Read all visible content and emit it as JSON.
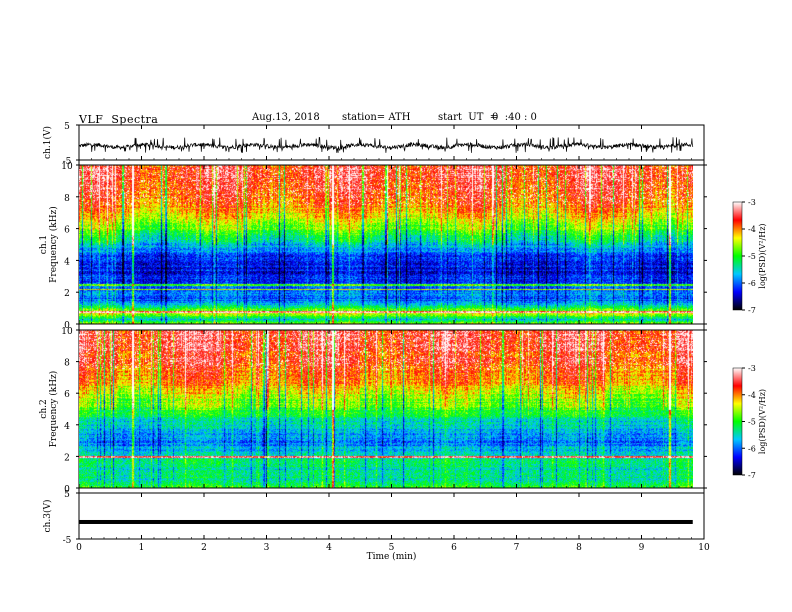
{
  "header": {
    "title": "VLF  Spectra",
    "date": "Aug.13, 2018",
    "station": "station= ATH",
    "start_ut_label": "start  UT  =",
    "start_ut_value": "0  :40 : 0"
  },
  "chart_data": [
    {
      "id": "ch1-waveform",
      "type": "line",
      "ylabel": "ch.1(V)",
      "ylim": [
        -5,
        5
      ],
      "yticks": [
        "5",
        "-5"
      ],
      "xlim": [
        0,
        10
      ],
      "x_extent": [
        0,
        9.82
      ],
      "baseline_v": -1.0,
      "noise_envelope_v": [
        -3,
        1.5
      ],
      "color": "#000000"
    },
    {
      "id": "ch1-spectrogram",
      "type": "heatmap",
      "ylabel_line1": "ch.1",
      "ylabel_line2": "Frequency  (kHz)",
      "ylim": [
        0,
        10
      ],
      "yticks": [
        "0",
        "2",
        "4",
        "6",
        "8",
        "10"
      ],
      "xlim": [
        0,
        10
      ],
      "x_extent": [
        0,
        9.82
      ],
      "colorbar": {
        "label": "log(PSD)(V²/Hz)",
        "range": [
          -7,
          -3
        ],
        "ticks": [
          "-3",
          "-4",
          "-5",
          "-6",
          "-7"
        ],
        "colors": [
          "#000000",
          "#0000ff",
          "#00c8ff",
          "#00ff00",
          "#ffff00",
          "#ff0000",
          "#ffffff"
        ]
      },
      "profile_khz_log_psd": [
        [
          0,
          -4.5
        ],
        [
          0.3,
          -5.5
        ],
        [
          0.7,
          -4.3
        ],
        [
          1.5,
          -6.0
        ],
        [
          2.0,
          -5.8
        ],
        [
          3.0,
          -6.3
        ],
        [
          4.0,
          -6.3
        ],
        [
          5.0,
          -5.6
        ],
        [
          6.0,
          -4.8
        ],
        [
          7.0,
          -4.2
        ],
        [
          8.0,
          -3.8
        ],
        [
          9.0,
          -3.6
        ],
        [
          10.0,
          -3.6
        ]
      ],
      "tonal_lines_khz": [
        0.8,
        2.2,
        2.5
      ],
      "bright_sferics_min": [
        0.85,
        4.05,
        9.45
      ]
    },
    {
      "id": "ch2-spectrogram",
      "type": "heatmap",
      "ylabel_line1": "ch.2",
      "ylabel_line2": "Frequency  (kHz)",
      "ylim": [
        0,
        10
      ],
      "yticks": [
        "0",
        "2",
        "4",
        "6",
        "8",
        "10"
      ],
      "xlim": [
        0,
        10
      ],
      "x_extent": [
        0,
        9.82
      ],
      "colorbar": {
        "label": "log(PSD)(V²/Hz)",
        "range": [
          -7,
          -3
        ],
        "ticks": [
          "-3",
          "-4",
          "-5",
          "-6",
          "-7"
        ],
        "colors": [
          "#000000",
          "#0000ff",
          "#00c8ff",
          "#00ff00",
          "#ffff00",
          "#ff0000",
          "#ffffff"
        ]
      },
      "profile_khz_log_psd": [
        [
          0,
          -5.0
        ],
        [
          0.5,
          -5.3
        ],
        [
          1.0,
          -5.4
        ],
        [
          1.9,
          -5.3
        ],
        [
          2.0,
          -4.3
        ],
        [
          2.1,
          -5.6
        ],
        [
          3.0,
          -5.9
        ],
        [
          4.0,
          -5.6
        ],
        [
          5.0,
          -4.9
        ],
        [
          6.0,
          -4.4
        ],
        [
          7.0,
          -3.9
        ],
        [
          8.0,
          -3.7
        ],
        [
          10.0,
          -3.5
        ]
      ],
      "tonal_lines_khz": [
        2.0
      ],
      "bright_sferics_min": [
        0.85,
        4.05,
        9.45
      ]
    },
    {
      "id": "ch3-waveform",
      "type": "line",
      "ylabel": "ch.3(V)",
      "ylim": [
        -5,
        5
      ],
      "yticks": [
        "5",
        "-5"
      ],
      "xlim": [
        0,
        10
      ],
      "x_extent": [
        0,
        9.82
      ],
      "baseline_v": -1.3,
      "color": "#000000"
    }
  ],
  "xaxis": {
    "label": "Time  (min)",
    "ticks": [
      "0",
      "1",
      "2",
      "3",
      "4",
      "5",
      "6",
      "7",
      "8",
      "9",
      "10"
    ]
  },
  "colors": {
    "waveform": "#000000",
    "background": "#ffffff"
  }
}
